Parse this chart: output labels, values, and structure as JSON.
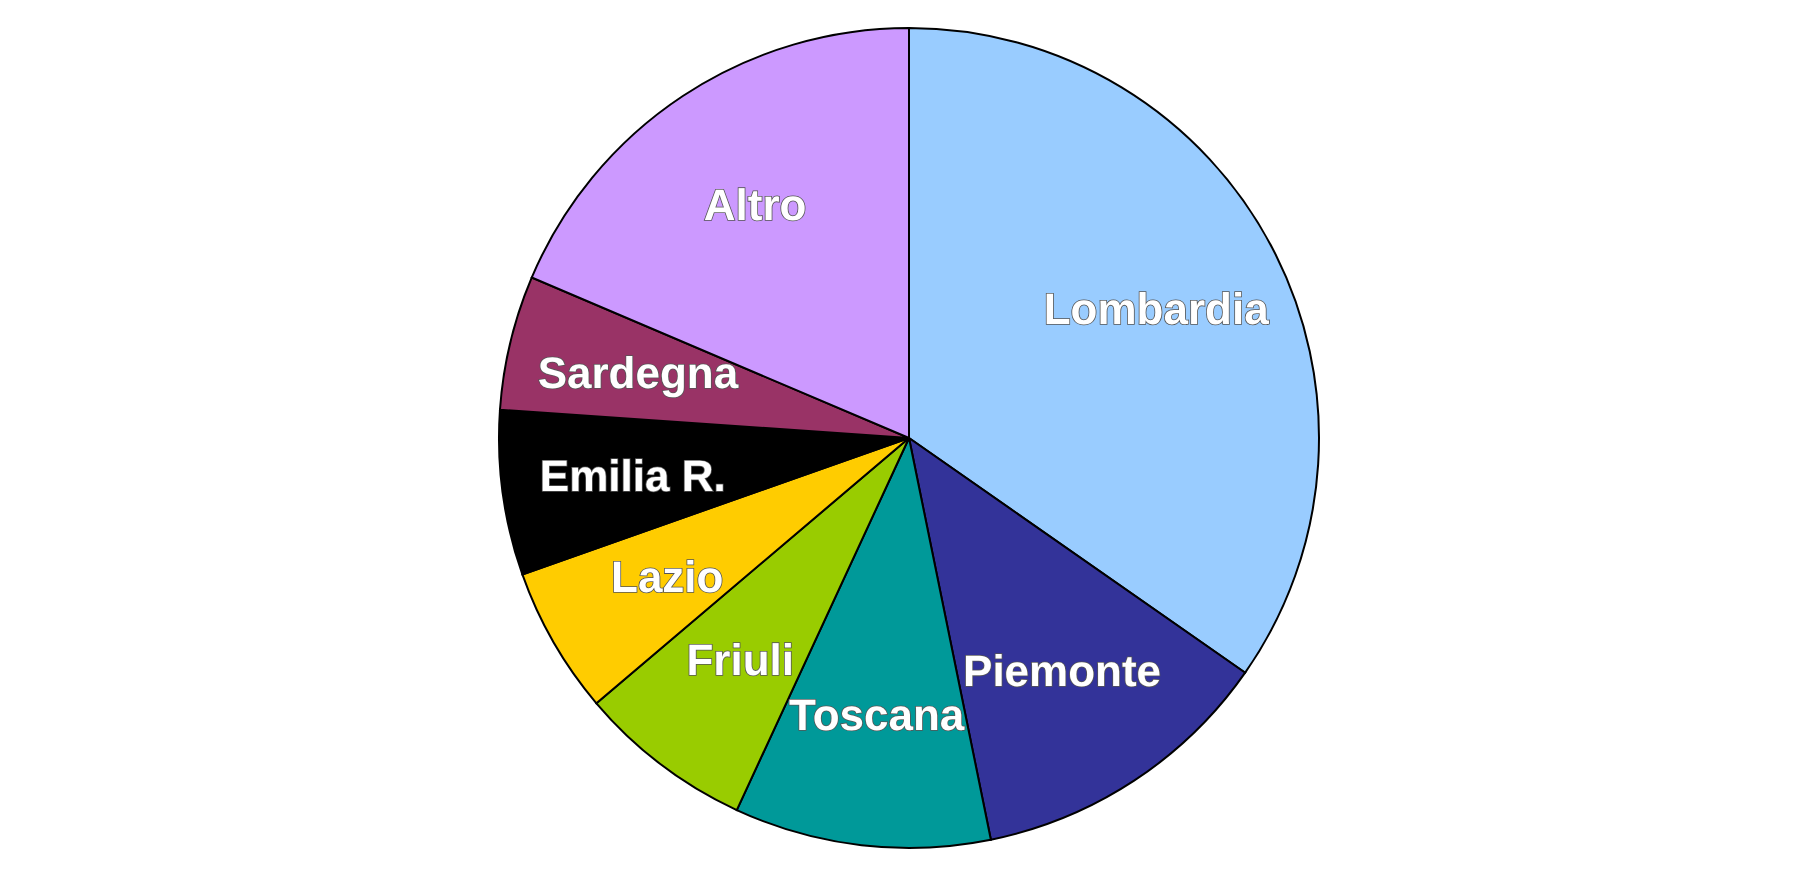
{
  "chart_data": {
    "type": "pie",
    "categories": [
      "Lombardia",
      "Piemonte",
      "Toscana",
      "Friuli",
      "Lazio",
      "Emilia R.",
      "Sardegna",
      "Altro"
    ],
    "values": [
      34.7,
      12.1,
      10.1,
      6.9,
      5.8,
      6.5,
      5.3,
      18.6
    ],
    "colors": [
      "#99ccff",
      "#333399",
      "#009999",
      "#99cc00",
      "#ffcc00",
      "#000000",
      "#993366",
      "#cc99ff"
    ]
  }
}
